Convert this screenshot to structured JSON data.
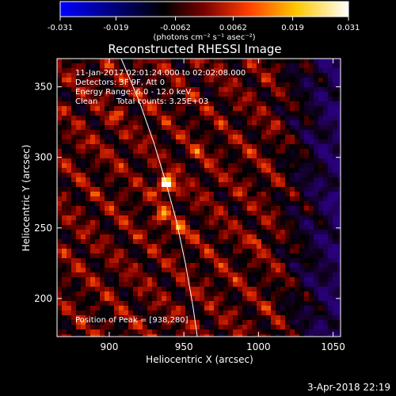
{
  "colorbar": {
    "ticks": [
      "-0.031",
      "-0.019",
      "-0.0062",
      "0.0062",
      "0.019",
      "0.031"
    ],
    "tick_values": [
      -0.031,
      -0.019,
      -0.0062,
      0.0062,
      0.019,
      0.031
    ],
    "range": [
      -0.031,
      0.031
    ],
    "unit_label": "(photons cm⁻² s⁻¹ asec⁻²)",
    "colors": [
      "#0000ff",
      "#000000",
      "#7a0000",
      "#ff3c00",
      "#ffc800",
      "#ffffff"
    ]
  },
  "chart_data": {
    "type": "heatmap",
    "title": "Reconstructed RHESSI Image",
    "xlabel": "Heliocentric X (arcsec)",
    "ylabel": "Heliocentric Y (arcsec)",
    "xlim": [
      865,
      1055
    ],
    "ylim": [
      173,
      370
    ],
    "x_ticks": [
      900,
      950,
      1000,
      1050
    ],
    "y_ticks": [
      200,
      250,
      300,
      350
    ],
    "x_tick_labels": [
      "900",
      "950",
      "1000",
      "1050"
    ],
    "y_tick_labels": [
      "200",
      "250",
      "300",
      "350"
    ],
    "annotations": [
      "11-Jan-2017 02:01:24.000 to 02:02:08.000",
      "Detectors: 3F 9F, Att 0",
      "Energy Range: 6.0 - 12.0 keV",
      "Clean",
      "Total counts: 3.25E+03"
    ],
    "peak_label": "Position of Peak = [938,280]",
    "peak": [
      938,
      280
    ],
    "limb_curve": [
      [
        908,
        370
      ],
      [
        920,
        340
      ],
      [
        930,
        310
      ],
      [
        938,
        282
      ],
      [
        945,
        255
      ],
      [
        951,
        225
      ],
      [
        956,
        195
      ],
      [
        959,
        173
      ]
    ]
  },
  "footer": {
    "date": "3-Apr-2018 22:19"
  }
}
